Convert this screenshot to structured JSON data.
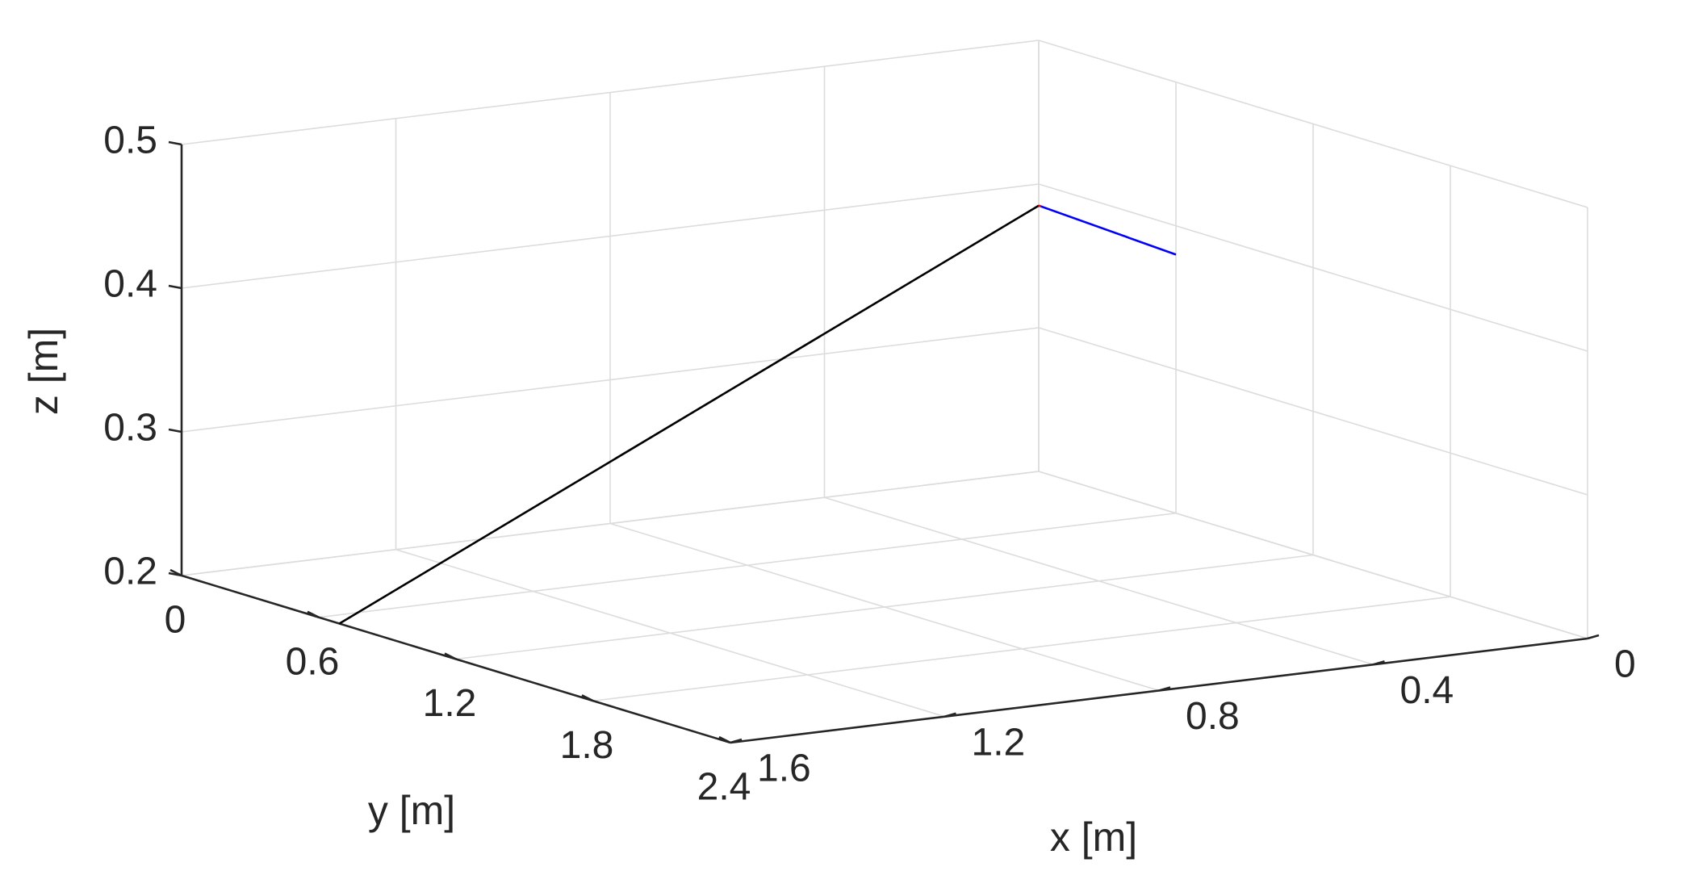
{
  "chart_data": {
    "type": "line",
    "projection": "3d",
    "title": "",
    "xlabel": "x [m]",
    "ylabel": "y [m]",
    "zlabel": "z [m]",
    "xlim": [
      0,
      2.4
    ],
    "ylim": [
      0,
      1.6
    ],
    "zlim": [
      0.2,
      0.5
    ],
    "xticks": [
      "0",
      "0.6",
      "1.2",
      "1.8",
      "2.4"
    ],
    "yticks": [
      "0",
      "0.4",
      "0.8",
      "1.2",
      "1.6"
    ],
    "zticks": [
      "0.2",
      "0.3",
      "0.4",
      "0.5"
    ],
    "grid": true,
    "legend": "none",
    "series": [
      {
        "color": "#000000",
        "x": [
          0.69,
          0.0
        ],
        "y": [
          1.6,
          0.0
        ],
        "z": [
          0.2,
          0.385
        ]
      },
      {
        "color": "#0000ff",
        "x": [
          0.0,
          0.6
        ],
        "y": [
          0.0,
          0.0
        ],
        "z": [
          0.385,
          0.38
        ]
      },
      {
        "color": "#ff0000",
        "x": [
          0.0,
          0.01
        ],
        "y": [
          0.0,
          0.0
        ],
        "z": [
          0.385,
          0.385
        ]
      }
    ]
  }
}
